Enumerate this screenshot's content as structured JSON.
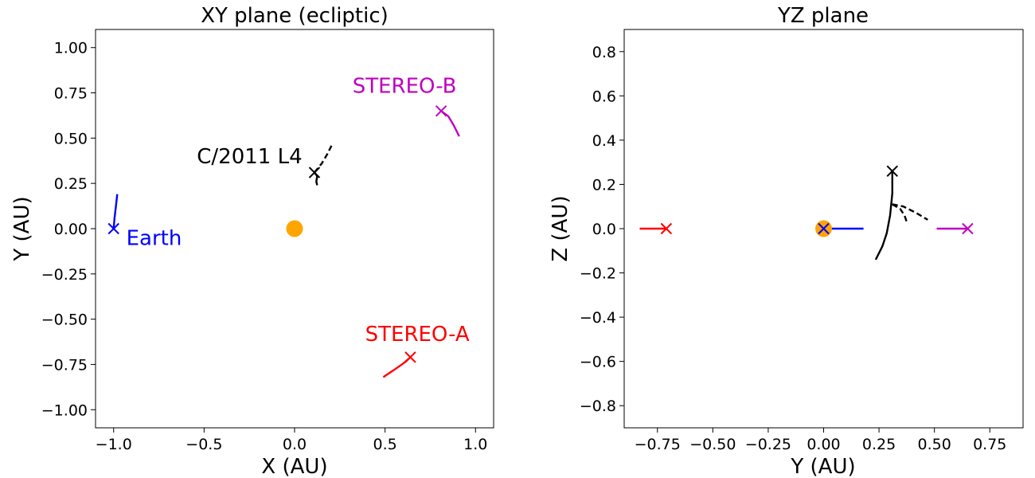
{
  "chart_data": [
    {
      "type": "line",
      "title": "XY plane (ecliptic)",
      "xlabel": "X (AU)",
      "ylabel": "Y (AU)",
      "xlim": [
        -1.1,
        1.1
      ],
      "ylim": [
        -1.1,
        1.1
      ],
      "xticks": [
        -1.0,
        -0.5,
        0.0,
        0.5,
        1.0
      ],
      "xtick_labels": [
        "−1.0",
        "−0.5",
        "0.0",
        "0.5",
        "1.0"
      ],
      "yticks": [
        -1.0,
        -0.75,
        -0.5,
        -0.25,
        0.0,
        0.25,
        0.5,
        0.75,
        1.0
      ],
      "ytick_labels": [
        "−1.00",
        "−0.75",
        "−0.50",
        "−0.25",
        "0.00",
        "0.25",
        "0.50",
        "0.75",
        "1.00"
      ],
      "grid": false,
      "sun": {
        "x": 0.0,
        "y": 0.0,
        "color": "#ffa500"
      },
      "series": [
        {
          "id": "earth",
          "color": "#0000ff",
          "dash": false,
          "x": [
            -1.0,
            -0.995,
            -0.988,
            -0.98
          ],
          "y": [
            0.0,
            0.06,
            0.12,
            0.19
          ]
        },
        {
          "id": "stereo-a",
          "color": "#ff0000",
          "dash": false,
          "x": [
            0.64,
            0.6,
            0.55,
            0.49
          ],
          "y": [
            -0.71,
            -0.745,
            -0.78,
            -0.82
          ]
        },
        {
          "id": "stereo-b",
          "color": "#bf00bf",
          "dash": false,
          "x": [
            0.81,
            0.85,
            0.88,
            0.91
          ],
          "y": [
            0.65,
            0.62,
            0.57,
            0.51
          ]
        },
        {
          "id": "comet",
          "color": "#000000",
          "dash": false,
          "x": [
            0.11,
            0.125,
            0.12,
            0.125
          ],
          "y": [
            0.31,
            0.29,
            0.26,
            0.24
          ]
        },
        {
          "id": "comet-future",
          "color": "#000000",
          "dash": true,
          "x": [
            0.11,
            0.15,
            0.18,
            0.21
          ],
          "y": [
            0.31,
            0.36,
            0.41,
            0.47
          ]
        }
      ],
      "markers": [
        {
          "id": "earth",
          "x": -1.0,
          "y": 0.0,
          "color": "#0000ff"
        },
        {
          "id": "stereo-a",
          "x": 0.64,
          "y": -0.71,
          "color": "#ff0000"
        },
        {
          "id": "stereo-b",
          "x": 0.81,
          "y": 0.65,
          "color": "#bf00bf"
        },
        {
          "id": "comet",
          "x": 0.11,
          "y": 0.31,
          "color": "#000000"
        }
      ],
      "annotations": [
        {
          "text": "Earth",
          "x": -0.93,
          "y": -0.05,
          "color": "#0000ff",
          "anchor": "start"
        },
        {
          "text": "STEREO-A",
          "x": 0.39,
          "y": -0.58,
          "color": "#ff0000",
          "anchor": "start"
        },
        {
          "text": "STEREO-B",
          "x": 0.32,
          "y": 0.79,
          "color": "#bf00bf",
          "anchor": "start"
        },
        {
          "text": "C/2011 L4",
          "x": -0.54,
          "y": 0.4,
          "color": "#000000",
          "anchor": "start"
        }
      ]
    },
    {
      "type": "line",
      "title": "YZ plane",
      "xlabel": "Y (AU)",
      "ylabel": "Z (AU)",
      "xlim": [
        -0.9,
        0.9
      ],
      "ylim": [
        -0.9,
        0.9
      ],
      "xticks": [
        -0.75,
        -0.5,
        -0.25,
        0.0,
        0.25,
        0.5,
        0.75
      ],
      "xtick_labels": [
        "−0.75",
        "−0.50",
        "−0.25",
        "0.00",
        "0.25",
        "0.50",
        "0.75"
      ],
      "yticks": [
        -0.8,
        -0.6,
        -0.4,
        -0.2,
        0.0,
        0.2,
        0.4,
        0.6,
        0.8
      ],
      "ytick_labels": [
        "−0.8",
        "−0.6",
        "−0.4",
        "−0.2",
        "0.0",
        "0.2",
        "0.4",
        "0.6",
        "0.8"
      ],
      "grid": false,
      "sun": {
        "x": 0.0,
        "y": 0.0,
        "color": "#ffa500"
      },
      "series": [
        {
          "id": "earth",
          "color": "#0000ff",
          "dash": false,
          "x": [
            0.0,
            0.06,
            0.12,
            0.18
          ],
          "y": [
            0.0,
            0.0,
            0.0,
            0.0
          ]
        },
        {
          "id": "stereo-a",
          "color": "#ff0000",
          "dash": false,
          "x": [
            -0.83,
            -0.79,
            -0.75,
            -0.71
          ],
          "y": [
            0.0,
            0.0,
            0.0,
            0.0
          ]
        },
        {
          "id": "stereo-b",
          "color": "#bf00bf",
          "dash": false,
          "x": [
            0.51,
            0.56,
            0.61,
            0.65
          ],
          "y": [
            0.0,
            0.0,
            0.0,
            0.0
          ]
        },
        {
          "id": "comet",
          "color": "#000000",
          "dash": false,
          "x": [
            0.31,
            0.31,
            0.3,
            0.285,
            0.265,
            0.235
          ],
          "y": [
            0.26,
            0.16,
            0.06,
            -0.02,
            -0.08,
            -0.14
          ]
        },
        {
          "id": "comet-future",
          "color": "#000000",
          "dash": true,
          "x": [
            0.31,
            0.36,
            0.42,
            0.47
          ],
          "y": [
            0.11,
            0.1,
            0.07,
            0.04
          ]
        },
        {
          "id": "comet-future-2",
          "color": "#000000",
          "dash": true,
          "x": [
            0.31,
            0.345,
            0.365,
            0.375
          ],
          "y": [
            0.11,
            0.09,
            0.06,
            0.03
          ]
        }
      ],
      "markers": [
        {
          "id": "stereo-a",
          "x": -0.71,
          "y": 0.0,
          "color": "#ff0000"
        },
        {
          "id": "stereo-b",
          "x": 0.65,
          "y": 0.0,
          "color": "#bf00bf"
        },
        {
          "id": "comet",
          "x": 0.31,
          "y": 0.26,
          "color": "#000000"
        },
        {
          "id": "earth",
          "x": 0.0,
          "y": 0.0,
          "color": "#0000ff"
        }
      ],
      "annotations": []
    }
  ]
}
